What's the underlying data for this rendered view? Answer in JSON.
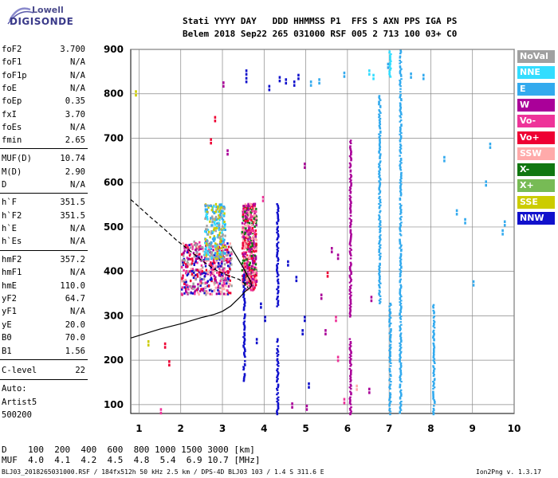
{
  "logo": {
    "company": "Lowell",
    "product": "DIGISONDE"
  },
  "header": {
    "line1": "Stati YYYY DAY   DDD HHMMSS P1  FFS S AXN PPS IGA PS",
    "line2": "Belem 2018 Sep22 265 031000 RSF 005 2 713 100 03+ C0"
  },
  "params": [
    {
      "label": "foF2",
      "value": "3.700"
    },
    {
      "label": "foF1",
      "value": "N/A"
    },
    {
      "label": "foF1p",
      "value": "N/A"
    },
    {
      "label": "foE",
      "value": "N/A"
    },
    {
      "label": "foEp",
      "value": "0.35"
    },
    {
      "label": "fxI",
      "value": "3.70"
    },
    {
      "label": "foEs",
      "value": "N/A"
    },
    {
      "label": "fmin",
      "value": "2.65"
    },
    {
      "label": "MUF(D)",
      "value": "10.74"
    },
    {
      "label": "M(D)",
      "value": "2.90"
    },
    {
      "label": "D",
      "value": "N/A"
    },
    {
      "label": "h`F",
      "value": "351.5"
    },
    {
      "label": "h`F2",
      "value": "351.5"
    },
    {
      "label": "h`E",
      "value": "N/A"
    },
    {
      "label": "h`Es",
      "value": "N/A"
    },
    {
      "label": "hmF2",
      "value": "357.2"
    },
    {
      "label": "hmF1",
      "value": "N/A"
    },
    {
      "label": "hmE",
      "value": "110.0"
    },
    {
      "label": "yF2",
      "value": "64.7"
    },
    {
      "label": "yF1",
      "value": "N/A"
    },
    {
      "label": "yE",
      "value": "20.0"
    },
    {
      "label": "B0",
      "value": "70.0"
    },
    {
      "label": "B1",
      "value": "1.56"
    },
    {
      "label": "C-level",
      "value": "22"
    },
    {
      "label": "Auto:",
      "value": ""
    },
    {
      "label": "Artist5",
      "value": ""
    },
    {
      "label": "500200",
      "value": ""
    }
  ],
  "legend": [
    {
      "label": "NoVal",
      "color": "#a0a0a0",
      "text_color": "#ffffff"
    },
    {
      "label": "NNE",
      "color": "#33ddff",
      "text_color": "#ffffff"
    },
    {
      "label": "E",
      "color": "#33aaee",
      "text_color": "#ffffff"
    },
    {
      "label": "W",
      "color": "#aa0099",
      "text_color": "#ffffff"
    },
    {
      "label": "Vo-",
      "color": "#ee3399",
      "text_color": "#ffffff"
    },
    {
      "label": "Vo+",
      "color": "#ee0033",
      "text_color": "#ffffff"
    },
    {
      "label": "SSW",
      "color": "#ffaaaa",
      "text_color": "#ffffff"
    },
    {
      "label": "X-",
      "color": "#117711",
      "text_color": "#ffffff"
    },
    {
      "label": "X+",
      "color": "#77bb55",
      "text_color": "#ffffff"
    },
    {
      "label": "SSE",
      "color": "#cccc00",
      "text_color": "#ffffff"
    },
    {
      "label": "NNW",
      "color": "#1111cc",
      "text_color": "#ffffff"
    }
  ],
  "footer": {
    "d_row": "D    100  200  400  600  800 1000 1500 3000 [km]",
    "muf_row": "MUF  4.0  4.1  4.2  4.5  4.8  5.4  6.9 10.7 [MHz]",
    "file_info": "BLJ03_2018265031000.RSF / 184fx512h 50 kHz 2.5 km / DPS-4D BLJ03 103 / 1.4 S 311.6 E",
    "version": "Ion2Png v. 1.3.17"
  },
  "chart_data": {
    "type": "scatter",
    "x": {
      "min": 0.8,
      "max": 10,
      "ticks": [
        1,
        2,
        3,
        4,
        5,
        6,
        7,
        8,
        9,
        10
      ]
    },
    "y": {
      "min": 80,
      "max": 900,
      "ticks": [
        100,
        200,
        300,
        400,
        500,
        600,
        700,
        800,
        900
      ]
    },
    "grid": true,
    "trace_o": {
      "style": "solid",
      "points": [
        [
          0.8,
          250
        ],
        [
          1.5,
          270
        ],
        [
          2.0,
          282
        ],
        [
          2.5,
          296
        ],
        [
          2.8,
          303
        ],
        [
          3.0,
          310
        ],
        [
          3.2,
          322
        ],
        [
          3.4,
          340
        ],
        [
          3.55,
          355
        ],
        [
          3.65,
          362
        ],
        [
          3.7,
          368
        ],
        [
          3.68,
          378
        ],
        [
          3.6,
          390
        ],
        [
          3.5,
          408
        ],
        [
          3.35,
          432
        ],
        [
          3.2,
          455
        ]
      ]
    },
    "profile_dashed": {
      "style": "dashed",
      "points": [
        [
          0.8,
          562
        ],
        [
          1.0,
          545
        ],
        [
          1.3,
          520
        ],
        [
          1.6,
          496
        ],
        [
          1.9,
          470
        ],
        [
          2.2,
          448
        ],
        [
          2.5,
          425
        ],
        [
          2.8,
          405
        ],
        [
          3.1,
          392
        ],
        [
          3.4,
          382
        ],
        [
          3.55,
          372
        ],
        [
          3.62,
          362
        ]
      ]
    },
    "echo_clusters": [
      {
        "x_min": 2.0,
        "x_max": 3.2,
        "y_min": 350,
        "y_max": 470,
        "colors": [
          "W",
          "Vo-",
          "Vo+",
          "SSW",
          "NoVal",
          "NNW"
        ],
        "density": "high"
      },
      {
        "x_min": 2.55,
        "x_max": 3.05,
        "y_min": 430,
        "y_max": 555,
        "colors": [
          "E",
          "NNE",
          "SSE",
          "NoVal"
        ],
        "density": "medium"
      },
      {
        "x_min": 3.45,
        "x_max": 3.8,
        "y_min": 360,
        "y_max": 555,
        "colors": [
          "W",
          "Vo-",
          "Vo+",
          "X-",
          "SSW"
        ],
        "density": "high"
      }
    ],
    "vertical_lines": [
      {
        "x": 3.5,
        "y_min": 155,
        "y_max": 395,
        "color": "NNW"
      },
      {
        "x": 4.3,
        "y_min": 320,
        "y_max": 555,
        "color": "NNW"
      },
      {
        "x": 4.3,
        "y_min": 80,
        "y_max": 250,
        "color": "NNW"
      },
      {
        "x": 6.05,
        "y_min": 80,
        "y_max": 250,
        "color": "W"
      },
      {
        "x": 6.05,
        "y_min": 300,
        "y_max": 700,
        "color": "W"
      },
      {
        "x": 7.0,
        "y_min": 80,
        "y_max": 330,
        "color": "E"
      },
      {
        "x": 6.75,
        "y_min": 330,
        "y_max": 800,
        "color": "E"
      },
      {
        "x": 7.25,
        "y_min": 80,
        "y_max": 900,
        "color": "E"
      },
      {
        "x": 8.05,
        "y_min": 80,
        "y_max": 330,
        "color": "E"
      },
      {
        "x": 7.0,
        "y_min": 840,
        "y_max": 900,
        "color": "NNE"
      }
    ],
    "scattered_points": [
      [
        4.1,
        820,
        "NNW"
      ],
      [
        4.35,
        840,
        "NNW"
      ],
      [
        4.5,
        835,
        "NNW"
      ],
      [
        4.7,
        830,
        "NNW"
      ],
      [
        4.8,
        845,
        "NNW"
      ],
      [
        3.55,
        838,
        "NNW"
      ],
      [
        3.55,
        855,
        "NNW"
      ],
      [
        3.0,
        828,
        "W"
      ],
      [
        2.8,
        750,
        "Vo+"
      ],
      [
        2.7,
        700,
        "Vo+"
      ],
      [
        3.1,
        675,
        "W"
      ],
      [
        3.95,
        570,
        "Vo-"
      ],
      [
        4.95,
        645,
        "W"
      ],
      [
        5.1,
        830,
        "E"
      ],
      [
        5.3,
        835,
        "E"
      ],
      [
        5.9,
        850,
        "E"
      ],
      [
        6.5,
        855,
        "NNE"
      ],
      [
        6.6,
        845,
        "NNE"
      ],
      [
        6.95,
        870,
        "E"
      ],
      [
        7.5,
        848,
        "E"
      ],
      [
        7.8,
        845,
        "E"
      ],
      [
        8.3,
        660,
        "E"
      ],
      [
        8.6,
        540,
        "E"
      ],
      [
        8.8,
        520,
        "E"
      ],
      [
        9.0,
        380,
        "E"
      ],
      [
        9.3,
        605,
        "E"
      ],
      [
        9.4,
        690,
        "E"
      ],
      [
        9.7,
        495,
        "E"
      ],
      [
        9.75,
        515,
        "E"
      ],
      [
        0.9,
        808,
        "SSE"
      ],
      [
        1.2,
        245,
        "SSE"
      ],
      [
        1.6,
        240,
        "Vo+"
      ],
      [
        1.7,
        200,
        "Vo+"
      ],
      [
        1.5,
        92,
        "Vo-"
      ],
      [
        4.65,
        105,
        "W"
      ],
      [
        5.0,
        100,
        "W"
      ],
      [
        5.05,
        150,
        "NNW"
      ],
      [
        4.9,
        270,
        "NNW"
      ],
      [
        4.95,
        300,
        "NNW"
      ],
      [
        5.35,
        350,
        "W"
      ],
      [
        5.5,
        400,
        "Vo+"
      ],
      [
        5.75,
        210,
        "Vo-"
      ],
      [
        5.9,
        115,
        "Vo-"
      ],
      [
        6.2,
        145,
        "SSW"
      ],
      [
        6.5,
        138,
        "W"
      ],
      [
        6.55,
        345,
        "W"
      ],
      [
        5.45,
        270,
        "W"
      ],
      [
        5.7,
        300,
        "Vo-"
      ],
      [
        5.6,
        455,
        "W"
      ],
      [
        5.75,
        440,
        "W"
      ],
      [
        3.9,
        330,
        "NNW"
      ],
      [
        4.0,
        300,
        "NNW"
      ],
      [
        4.55,
        425,
        "NNW"
      ],
      [
        4.75,
        390,
        "NNW"
      ],
      [
        3.8,
        250,
        "NNW"
      ]
    ]
  }
}
